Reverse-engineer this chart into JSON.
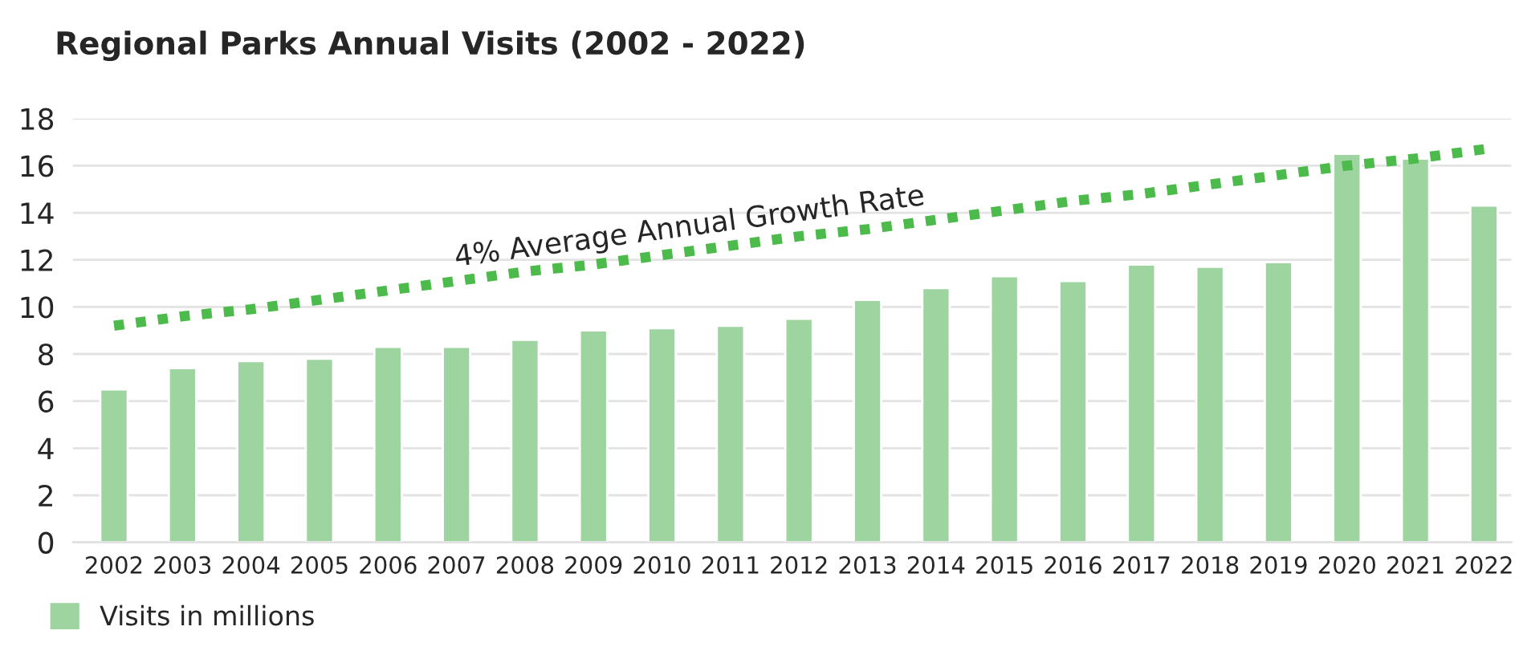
{
  "chart_data": {
    "type": "bar",
    "title": "Regional Parks Annual Visits (2002 - 2022)",
    "categories": [
      "2002",
      "2003",
      "2004",
      "2005",
      "2006",
      "2007",
      "2008",
      "2009",
      "2010",
      "2011",
      "2012",
      "2013",
      "2014",
      "2015",
      "2016",
      "2017",
      "2018",
      "2019",
      "2020",
      "2021",
      "2022"
    ],
    "series": [
      {
        "name": "Visits in millions",
        "color": "#9dd4a0",
        "values": [
          6.5,
          7.4,
          7.7,
          7.8,
          8.3,
          8.3,
          8.6,
          9.0,
          9.1,
          9.2,
          9.5,
          10.3,
          10.8,
          11.3,
          11.1,
          11.8,
          11.7,
          11.9,
          16.5,
          16.3,
          14.3
        ]
      },
      {
        "type": "line",
        "color": "#4cbb4c",
        "line_style": "dotted",
        "values": [
          9.2,
          9.6,
          9.9,
          10.3,
          10.7,
          11.1,
          11.5,
          11.8,
          12.2,
          12.6,
          13.0,
          13.3,
          13.7,
          14.1,
          14.5,
          14.8,
          15.2,
          15.6,
          16.0,
          16.3,
          16.7
        ]
      }
    ],
    "annotations": [
      "4% Average Annual Growth Rate"
    ],
    "ylim": [
      0,
      18
    ],
    "yticks": [
      0,
      2,
      4,
      6,
      8,
      10,
      12,
      14,
      16,
      18
    ],
    "grid": "y",
    "legend": "bottom left"
  }
}
